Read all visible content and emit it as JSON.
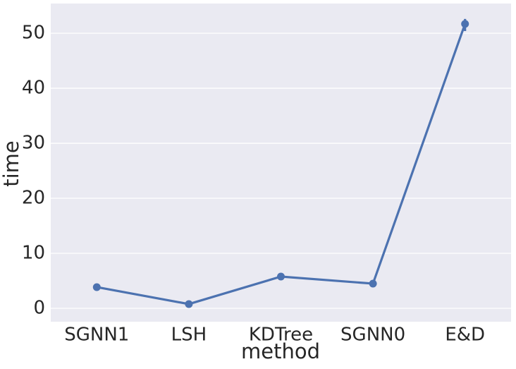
{
  "chart_data": {
    "type": "pointplot",
    "xlabel": "method",
    "ylabel": "time",
    "categories": [
      "SGNN1",
      "LSH",
      "KDTree",
      "SGNN0",
      "E&D"
    ],
    "values": [
      3.85,
      0.77,
      5.77,
      4.49,
      51.7
    ],
    "ci": [
      [
        3.7,
        4.0
      ],
      [
        0.7,
        0.85
      ],
      [
        5.6,
        5.9
      ],
      [
        4.35,
        4.6
      ],
      [
        50.4,
        52.6
      ]
    ],
    "color": "#4c72b0",
    "ylim": [
      -2.44,
      55.4
    ],
    "yticks": [
      0,
      10,
      20,
      30,
      40,
      50
    ],
    "grid": true
  }
}
